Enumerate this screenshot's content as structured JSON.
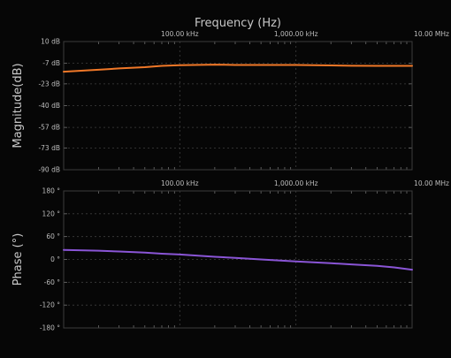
{
  "chart_data": [
    {
      "type": "line",
      "title": "Frequency (Hz)",
      "xlabel": "",
      "ylabel": "Magnitude(dB)",
      "x_scale": "log",
      "xlim": [
        10000,
        10000000
      ],
      "x_ticks": [
        {
          "value": 100000,
          "label": "100.00 kHz"
        },
        {
          "value": 1000000,
          "label": "1,000.00 kHz"
        },
        {
          "value": 10000000,
          "label": "10.00 MHz"
        }
      ],
      "ylim": [
        -90,
        10
      ],
      "y_ticks": [
        {
          "value": 10,
          "label": "10 dB"
        },
        {
          "value": -7,
          "label": "-7 dB"
        },
        {
          "value": -23,
          "label": "-23 dB"
        },
        {
          "value": -40,
          "label": "-40 dB"
        },
        {
          "value": -57,
          "label": "-57 dB"
        },
        {
          "value": -73,
          "label": "-73 dB"
        },
        {
          "value": -90,
          "label": "-90 dB"
        }
      ],
      "grid": true,
      "series": [
        {
          "color": "#f07828",
          "x": [
            10000,
            20000,
            30000,
            50000,
            70000,
            100000,
            200000,
            300000,
            500000,
            1000000,
            2000000,
            3000000,
            5000000,
            7000000,
            10000000
          ],
          "y": [
            -13.5,
            -12.0,
            -11.0,
            -10.0,
            -9.0,
            -8.5,
            -8.0,
            -8.3,
            -8.3,
            -8.3,
            -8.6,
            -8.9,
            -9.0,
            -9.0,
            -9.0
          ]
        }
      ]
    },
    {
      "type": "line",
      "title": "",
      "xlabel": "",
      "ylabel": "Phase (°)",
      "x_scale": "log",
      "xlim": [
        10000,
        10000000
      ],
      "x_ticks": [
        {
          "value": 100000,
          "label": "100.00 kHz"
        },
        {
          "value": 1000000,
          "label": "1,000.00 kHz"
        },
        {
          "value": 10000000,
          "label": "10.00 MHz"
        }
      ],
      "ylim": [
        -180,
        180
      ],
      "y_ticks": [
        {
          "value": 180,
          "label": "180 °"
        },
        {
          "value": 120,
          "label": "120 °"
        },
        {
          "value": 60,
          "label": "60 °"
        },
        {
          "value": 0,
          "label": "0 °"
        },
        {
          "value": -60,
          "label": "-60 °"
        },
        {
          "value": -120,
          "label": "-120 °"
        },
        {
          "value": -180,
          "label": "-180 °"
        }
      ],
      "grid": true,
      "series": [
        {
          "color": "#8a55d6",
          "x": [
            10000,
            20000,
            30000,
            50000,
            70000,
            100000,
            200000,
            300000,
            500000,
            1000000,
            2000000,
            3000000,
            5000000,
            7000000,
            10000000
          ],
          "y": [
            25,
            23,
            21,
            18,
            15,
            13,
            7,
            4,
            0,
            -5,
            -10,
            -13,
            -17,
            -21,
            -27
          ]
        }
      ]
    }
  ]
}
